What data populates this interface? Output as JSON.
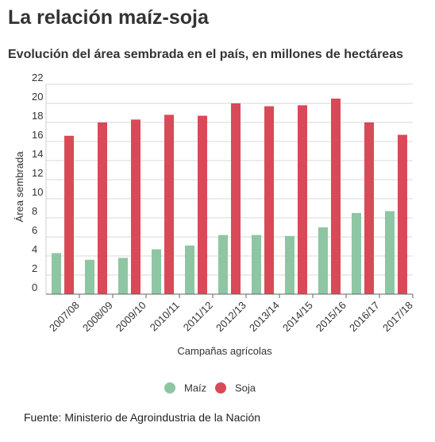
{
  "header": {
    "title": "La relación maíz-soja",
    "subtitle": "Evolución del área sembrada en el país, en millones de hectáreas"
  },
  "footer": {
    "source": "Fuente: Ministerio de Agroindustria de la Nación"
  },
  "colors": {
    "maiz": "#8ec6a3",
    "soja": "#d84a57",
    "grid": "#d9d9d9",
    "text": "#333333"
  },
  "chart_data": {
    "type": "bar",
    "title": "",
    "xlabel": "Campañas agrícolas",
    "ylabel": "Área sembrada",
    "ylim": [
      0,
      22
    ],
    "yticks": [
      0,
      2,
      4,
      6,
      8,
      10,
      12,
      14,
      16,
      18,
      20,
      22
    ],
    "grid": true,
    "legend_position": "bottom",
    "categories": [
      "2007/08",
      "2008/09",
      "2009/10",
      "2010/11",
      "2011/12",
      "2012/13",
      "2013/14",
      "2014/15",
      "2015/16",
      "2016/17",
      "2017/18"
    ],
    "series": [
      {
        "name": "Maíz",
        "values": [
          4.3,
          3.6,
          3.8,
          4.7,
          5.1,
          6.2,
          6.2,
          6.1,
          7.0,
          8.5,
          8.7
        ]
      },
      {
        "name": "Soja",
        "values": [
          16.6,
          18.0,
          18.3,
          18.8,
          18.7,
          20.0,
          19.7,
          19.8,
          20.5,
          18.0,
          16.7
        ]
      }
    ]
  }
}
